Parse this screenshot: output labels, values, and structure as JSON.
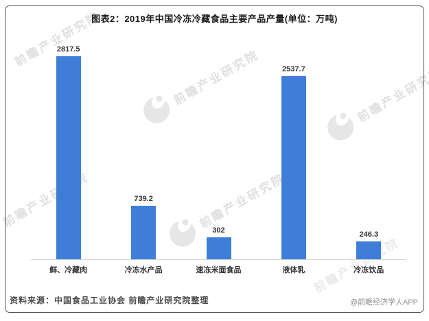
{
  "chart_data": {
    "type": "bar",
    "title": "图表2：2019年中国冷冻冷藏食品主要产品产量(单位：万吨)",
    "unit": "万吨",
    "categories": [
      "鲜、冷藏肉",
      "冷冻水产品",
      "速冻米面食品",
      "液体乳",
      "冷冻饮品"
    ],
    "values": [
      2817.5,
      739.2,
      302,
      2537.7,
      246.3
    ],
    "value_labels": [
      "2817.5",
      "739.2",
      "302",
      "2537.7",
      "246.3"
    ],
    "xlabel": "",
    "ylabel": "",
    "ylim": [
      0,
      2900
    ],
    "grid": false,
    "legend": "none",
    "bar_color": "#3E7ED8",
    "axis_color": "#d6d6d6"
  },
  "footer": {
    "source": "资料来源：中国食品工业协会 前瞻产业研究院整理",
    "credit": "@前瞻经济学人APP"
  },
  "watermark": {
    "text": "前瞻产业研究院"
  }
}
